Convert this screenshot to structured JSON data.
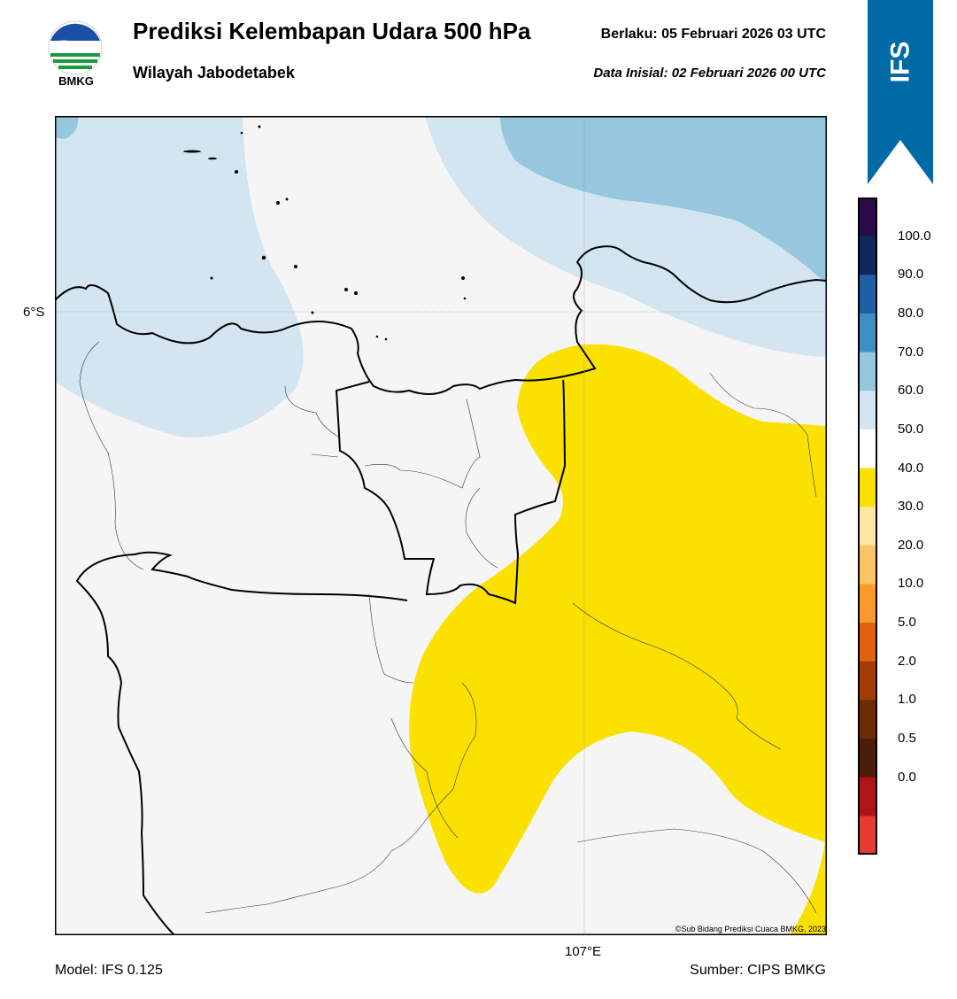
{
  "header": {
    "title": "Prediksi Kelembapan Udara 500 hPa",
    "subtitle": "Wilayah Jabodetabek",
    "valid_label": "Berlaku:  05 Februari 2026 03 UTC",
    "init_label": "Data Inisial:  02 Februari 2026 00 UTC",
    "logo_text": "BMKG"
  },
  "model_tag": "IFS",
  "map": {
    "lat_label": "6°S",
    "lon_label": "107°E",
    "copyright": "©Sub Bidang Prediksi Cuaca BMKG, 2023",
    "fill_colors": {
      "background": "#f5f5f5",
      "band_50_60": "#d3e5f0",
      "band_60_70": "#97c6df",
      "band_30_40": "#fae100",
      "coast": "#000000"
    }
  },
  "colorbar": {
    "ticks": [
      "100.0",
      "90.0",
      "80.0",
      "70.0",
      "60.0",
      "50.0",
      "40.0",
      "30.0",
      "20.0",
      "10.0",
      "5.0",
      "2.0",
      "1.0",
      "0.5",
      "0.0"
    ],
    "colors": [
      "#2b0a4b",
      "#0e2a5a",
      "#1f5ea8",
      "#3f8fc4",
      "#97c6df",
      "#d3e5f0",
      "#ffffff",
      "#fae100",
      "#fde7a5",
      "#fcc463",
      "#f99a2e",
      "#e0600f",
      "#a53c08",
      "#6e2c06",
      "#4b1d0a",
      "#b01318",
      "#e53b32"
    ]
  },
  "footer": {
    "model": "Model: IFS 0.125",
    "source": "Sumber: CIPS BMKG"
  }
}
